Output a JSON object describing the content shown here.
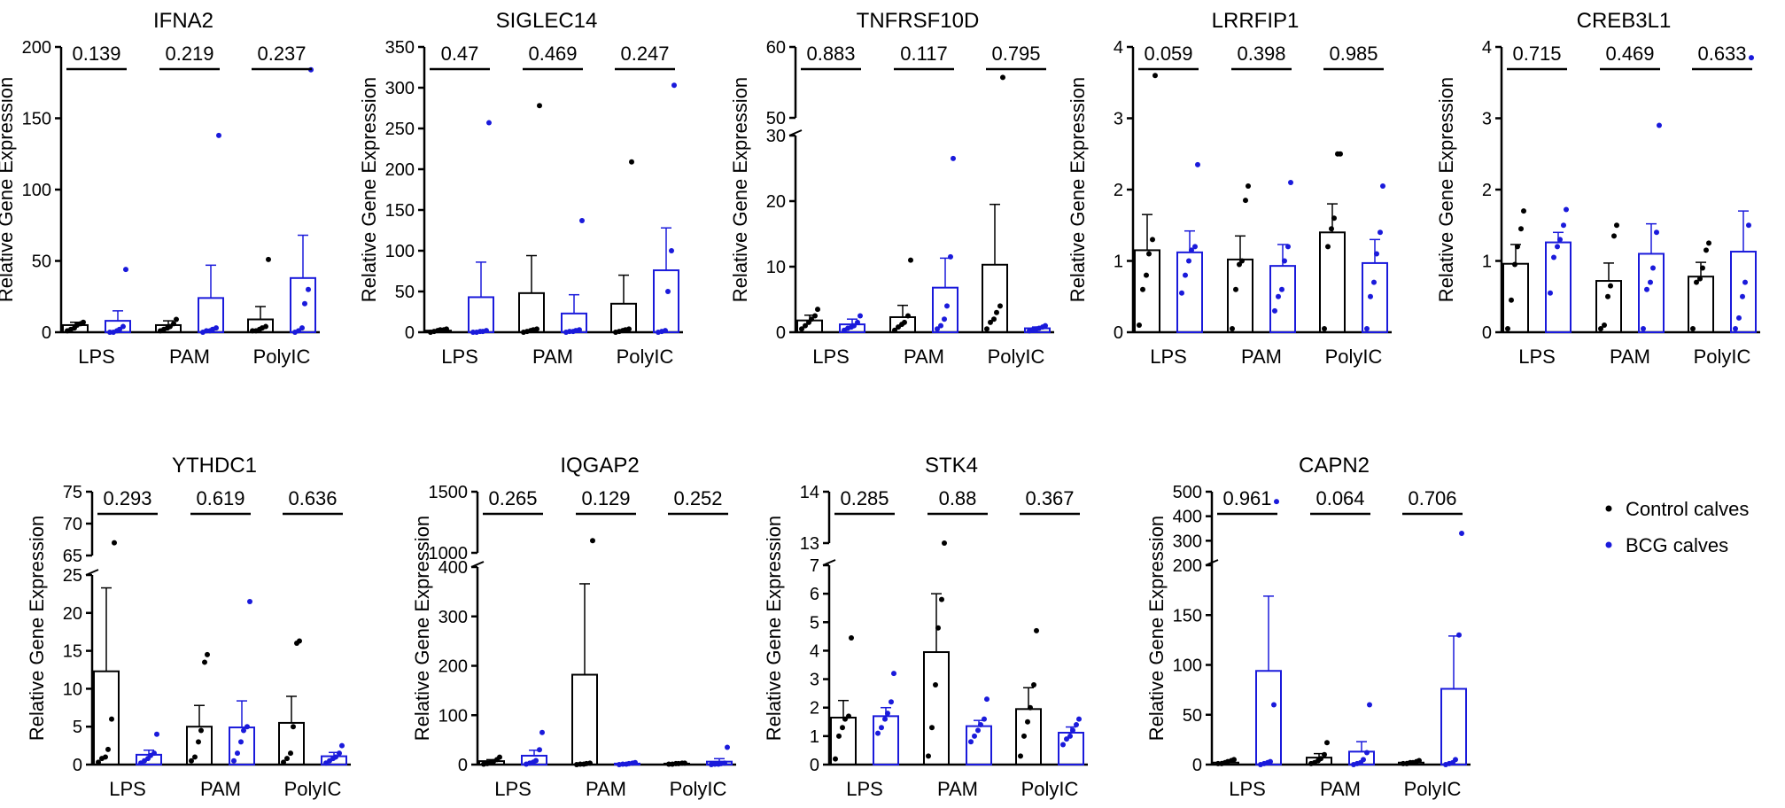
{
  "figure": {
    "x_categories": [
      "LPS",
      "PAM",
      "PolyIC"
    ],
    "ylabel": "Relative Gene Expression",
    "legend": [
      {
        "name": "Control calves",
        "color": "#000000"
      },
      {
        "name": "BCG calves",
        "color": "#1a1adb"
      }
    ]
  },
  "chart_data": [
    {
      "type": "bar",
      "title": "IFNA2",
      "ylabel": "Relative Gene Expression",
      "categories": [
        "LPS",
        "PAM",
        "PolyIC"
      ],
      "yticks": [
        0,
        50,
        100,
        150,
        200
      ],
      "segments": [
        {
          "range": [
            0,
            200
          ],
          "ticks": [
            0,
            50,
            100,
            150,
            200
          ]
        }
      ],
      "pvalues": [
        "0.139",
        "0.219",
        "0.237"
      ],
      "series": [
        {
          "name": "Control calves",
          "values": [
            5,
            5,
            9
          ],
          "err": [
            2,
            3,
            9
          ],
          "points": [
            [
              1,
              2,
              3,
              5,
              6,
              7
            ],
            [
              1,
              2,
              3,
              4,
              6,
              9
            ],
            [
              1,
              1,
              2,
              3,
              4,
              51
            ]
          ]
        },
        {
          "name": "BCG calves",
          "values": [
            8,
            24,
            38
          ],
          "err": [
            7,
            23,
            30
          ],
          "points": [
            [
              0,
              0,
              1,
              2,
              4,
              44
            ],
            [
              0,
              1,
              1,
              2,
              3,
              138
            ],
            [
              0,
              1,
              3,
              20,
              30,
              184
            ]
          ]
        }
      ]
    },
    {
      "type": "bar",
      "title": "SIGLEC14",
      "ylabel": "Relative Gene Expression",
      "categories": [
        "LPS",
        "PAM",
        "PolyIC"
      ],
      "yticks": [
        0,
        50,
        100,
        150,
        200,
        250,
        300,
        350
      ],
      "segments": [
        {
          "range": [
            0,
            350
          ],
          "ticks": [
            0,
            50,
            100,
            150,
            200,
            250,
            300,
            350
          ]
        }
      ],
      "pvalues": [
        "0.47",
        "0.469",
        "0.247"
      ],
      "series": [
        {
          "name": "Control calves",
          "values": [
            2,
            48,
            35
          ],
          "err": [
            1,
            46,
            35
          ],
          "points": [
            [
              0,
              1,
              2,
              3,
              3,
              4
            ],
            [
              0,
              1,
              2,
              3,
              4,
              278
            ],
            [
              0,
              1,
              2,
              3,
              4,
              209
            ]
          ]
        },
        {
          "name": "BCG calves",
          "values": [
            43,
            23,
            76
          ],
          "err": [
            43,
            23,
            52
          ],
          "points": [
            [
              0,
              0,
              1,
              1,
              2,
              257
            ],
            [
              0,
              1,
              1,
              2,
              3,
              137
            ],
            [
              0,
              1,
              2,
              50,
              100,
              303
            ]
          ]
        }
      ]
    },
    {
      "type": "bar",
      "title": "TNFRSF10D",
      "ylabel": "Relative Gene Expression",
      "categories": [
        "LPS",
        "PAM",
        "PolyIC"
      ],
      "yticks": [
        0,
        10,
        20,
        30,
        50,
        60
      ],
      "segments": [
        {
          "range": [
            0,
            30
          ],
          "ticks": [
            0,
            10,
            20,
            30
          ]
        },
        {
          "range": [
            50,
            60
          ],
          "ticks": [
            50,
            60
          ]
        }
      ],
      "pvalues": [
        "0.883",
        "0.117",
        "0.795"
      ],
      "series": [
        {
          "name": "Control calves",
          "values": [
            1.8,
            2.3,
            10.3
          ],
          "err": [
            0.8,
            1.8,
            9.2
          ],
          "points": [
            [
              0.5,
              1.0,
              1.5,
              2.0,
              2.5,
              3.5
            ],
            [
              0.3,
              0.8,
              1.2,
              1.5,
              2.5,
              11.0
            ],
            [
              0.5,
              1.5,
              2.0,
              3.0,
              4.0,
              55.7
            ]
          ]
        },
        {
          "name": "BCG calves",
          "values": [
            1.2,
            6.8,
            0.6
          ],
          "err": [
            0.8,
            4.5,
            0.2
          ],
          "points": [
            [
              0.3,
              0.6,
              0.8,
              1.0,
              1.5,
              2.5
            ],
            [
              0.5,
              1.0,
              2.0,
              4.0,
              11.5,
              26.5
            ],
            [
              0.2,
              0.4,
              0.5,
              0.6,
              0.8,
              1.0
            ]
          ]
        }
      ]
    },
    {
      "type": "bar",
      "title": "LRRFIP1",
      "ylabel": "Relative Gene Expression",
      "categories": [
        "LPS",
        "PAM",
        "PolyIC"
      ],
      "yticks": [
        0,
        1,
        2,
        3,
        4
      ],
      "segments": [
        {
          "range": [
            0,
            4
          ],
          "ticks": [
            0,
            1,
            2,
            3,
            4
          ]
        }
      ],
      "pvalues": [
        "0.059",
        "0.398",
        "0.985"
      ],
      "series": [
        {
          "name": "Control calves",
          "values": [
            1.15,
            1.02,
            1.4
          ],
          "err": [
            0.5,
            0.33,
            0.4
          ],
          "points": [
            [
              0.1,
              0.6,
              0.8,
              1.1,
              1.3,
              3.6
            ],
            [
              0.05,
              0.6,
              0.95,
              1.0,
              1.85,
              2.05
            ],
            [
              0.05,
              1.2,
              1.45,
              1.6,
              2.5,
              2.5
            ]
          ]
        },
        {
          "name": "BCG calves",
          "values": [
            1.12,
            0.93,
            0.97
          ],
          "err": [
            0.3,
            0.3,
            0.33
          ],
          "points": [
            [
              0.55,
              0.8,
              1.0,
              1.15,
              1.2,
              2.35
            ],
            [
              0.3,
              0.5,
              0.6,
              1.0,
              1.2,
              2.1
            ],
            [
              0.05,
              0.5,
              0.7,
              1.1,
              1.4,
              2.05
            ]
          ]
        }
      ]
    },
    {
      "type": "bar",
      "title": "CREB3L1",
      "ylabel": "Relative Gene Expression",
      "categories": [
        "LPS",
        "PAM",
        "PolyIC"
      ],
      "yticks": [
        0,
        1,
        2,
        3,
        4
      ],
      "segments": [
        {
          "range": [
            0,
            4
          ],
          "ticks": [
            0,
            1,
            2,
            3,
            4
          ]
        }
      ],
      "pvalues": [
        "0.715",
        "0.469",
        "0.633"
      ],
      "series": [
        {
          "name": "Control calves",
          "values": [
            0.96,
            0.72,
            0.78
          ],
          "err": [
            0.27,
            0.25,
            0.2
          ],
          "points": [
            [
              0.05,
              0.45,
              0.95,
              1.2,
              1.45,
              1.7
            ],
            [
              0.05,
              0.1,
              0.5,
              0.65,
              1.35,
              1.5
            ],
            [
              0.05,
              0.7,
              0.75,
              0.9,
              1.15,
              1.25
            ]
          ]
        },
        {
          "name": "BCG calves",
          "values": [
            1.26,
            1.1,
            1.13
          ],
          "err": [
            0.14,
            0.42,
            0.57
          ],
          "points": [
            [
              0.55,
              1.05,
              1.2,
              1.3,
              1.5,
              1.72
            ],
            [
              0.05,
              0.6,
              0.7,
              0.9,
              1.4,
              2.9
            ],
            [
              0.05,
              0.2,
              0.5,
              0.7,
              1.5,
              3.85
            ]
          ]
        }
      ]
    },
    {
      "type": "bar",
      "title": "YTHDC1",
      "ylabel": "Relative Gene Expression",
      "categories": [
        "LPS",
        "PAM",
        "PolyIC"
      ],
      "yticks": [
        0,
        5,
        10,
        15,
        20,
        25,
        65,
        70,
        75
      ],
      "segments": [
        {
          "range": [
            0,
            25
          ],
          "ticks": [
            0,
            5,
            10,
            15,
            20,
            25
          ]
        },
        {
          "range": [
            65,
            75
          ],
          "ticks": [
            65,
            70,
            75
          ]
        }
      ],
      "pvalues": [
        "0.293",
        "0.619",
        "0.636"
      ],
      "series": [
        {
          "name": "Control calves",
          "values": [
            12.3,
            5.0,
            5.5
          ],
          "err": [
            11.0,
            2.8,
            3.5
          ],
          "points": [
            [
              0.3,
              0.8,
              1.0,
              2.0,
              6.0,
              67.0
            ],
            [
              0.5,
              1.0,
              3.0,
              4.5,
              13.5,
              14.5
            ],
            [
              0.3,
              0.8,
              1.5,
              5.0,
              16.0,
              16.3
            ]
          ]
        },
        {
          "name": "BCG calves",
          "values": [
            1.3,
            4.9,
            1.1
          ],
          "err": [
            0.6,
            3.5,
            0.5
          ],
          "points": [
            [
              0.2,
              0.5,
              0.8,
              1.2,
              1.5,
              4.0
            ],
            [
              0.5,
              1.5,
              3.0,
              4.5,
              5.0,
              21.5
            ],
            [
              0.2,
              0.5,
              0.8,
              1.0,
              1.5,
              2.5
            ]
          ]
        }
      ]
    },
    {
      "type": "bar",
      "title": "IQGAP2",
      "ylabel": "Relative Gene Expression",
      "categories": [
        "LPS",
        "PAM",
        "PolyIC"
      ],
      "yticks": [
        0,
        100,
        200,
        300,
        400,
        1000,
        1500
      ],
      "segments": [
        {
          "range": [
            0,
            400
          ],
          "ticks": [
            0,
            100,
            200,
            300,
            400
          ]
        },
        {
          "range": [
            1000,
            1500
          ],
          "ticks": [
            1000,
            1500
          ]
        }
      ],
      "pvalues": [
        "0.265",
        "0.129",
        "0.252"
      ],
      "series": [
        {
          "name": "Control calves",
          "values": [
            7,
            182,
            2
          ],
          "err": [
            3,
            184,
            1
          ],
          "points": [
            [
              1,
              2,
              4,
              6,
              10,
              15
            ],
            [
              0,
              1,
              1,
              2,
              3,
              1100
            ],
            [
              1,
              1,
              2,
              2,
              3,
              3
            ]
          ]
        },
        {
          "name": "BCG calves",
          "values": [
            18,
            2,
            6
          ],
          "err": [
            11,
            1,
            6
          ],
          "points": [
            [
              1,
              3,
              5,
              8,
              30,
              65
            ],
            [
              0,
              1,
              1,
              2,
              3,
              4
            ],
            [
              0,
              1,
              1,
              2,
              3,
              35
            ]
          ]
        }
      ]
    },
    {
      "type": "bar",
      "title": "STK4",
      "ylabel": "Relative Gene Expression",
      "categories": [
        "LPS",
        "PAM",
        "PolyIC"
      ],
      "yticks": [
        0,
        1,
        2,
        3,
        4,
        5,
        6,
        7,
        13,
        14
      ],
      "segments": [
        {
          "range": [
            0,
            7
          ],
          "ticks": [
            0,
            1,
            2,
            3,
            4,
            5,
            6,
            7
          ]
        },
        {
          "range": [
            13,
            14
          ],
          "ticks": [
            13,
            14
          ]
        }
      ],
      "pvalues": [
        "0.285",
        "0.88",
        "0.367"
      ],
      "series": [
        {
          "name": "Control calves",
          "values": [
            1.65,
            3.95,
            1.95
          ],
          "err": [
            0.6,
            2.05,
            0.75
          ],
          "points": [
            [
              0.2,
              1.0,
              1.3,
              1.6,
              1.7,
              4.45
            ],
            [
              0.3,
              1.3,
              2.8,
              4.8,
              5.8,
              13.0
            ],
            [
              0.3,
              1.0,
              1.5,
              2.0,
              2.8,
              4.7
            ]
          ]
        },
        {
          "name": "BCG calves",
          "values": [
            1.7,
            1.35,
            1.12
          ],
          "err": [
            0.3,
            0.2,
            0.2
          ],
          "points": [
            [
              1.1,
              1.3,
              1.6,
              1.8,
              2.2,
              3.2
            ],
            [
              0.8,
              1.0,
              1.2,
              1.4,
              1.6,
              2.3
            ],
            [
              0.7,
              0.9,
              1.0,
              1.2,
              1.4,
              1.6
            ]
          ]
        }
      ]
    },
    {
      "type": "bar",
      "title": "CAPN2",
      "ylabel": "Relative Gene Expression",
      "categories": [
        "LPS",
        "PAM",
        "PolyIC"
      ],
      "yticks": [
        0,
        50,
        100,
        150,
        200,
        300,
        400,
        500
      ],
      "segments": [
        {
          "range": [
            0,
            200
          ],
          "ticks": [
            0,
            50,
            100,
            150,
            200
          ]
        },
        {
          "range": [
            200,
            500
          ],
          "ticks": [
            300,
            400,
            500
          ]
        }
      ],
      "pvalues": [
        "0.961",
        "0.064",
        "0.706"
      ],
      "series": [
        {
          "name": "Control calves",
          "values": [
            2,
            7,
            2
          ],
          "err": [
            1,
            4,
            1
          ],
          "points": [
            [
              1,
              1,
              2,
              3,
              4,
              5
            ],
            [
              1,
              2,
              4,
              6,
              10,
              22
            ],
            [
              1,
              1,
              2,
              2,
              3,
              4
            ]
          ]
        },
        {
          "name": "BCG calves",
          "values": [
            94,
            13,
            76
          ],
          "err": [
            75,
            10,
            53
          ],
          "points": [
            [
              0,
              1,
              2,
              3,
              60,
              460
            ],
            [
              0,
              1,
              2,
              5,
              12,
              60
            ],
            [
              0,
              1,
              2,
              5,
              130,
              330
            ]
          ]
        }
      ]
    }
  ]
}
